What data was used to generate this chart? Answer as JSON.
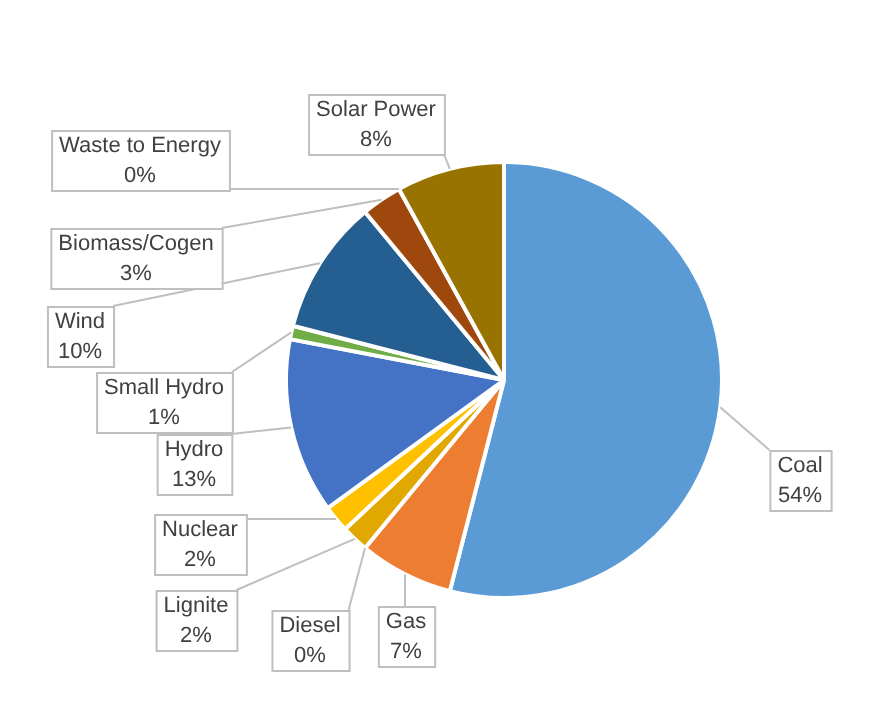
{
  "chart_data": {
    "type": "pie",
    "categories": [
      "Coal",
      "Gas",
      "Diesel",
      "Lignite",
      "Nuclear",
      "Hydro",
      "Small Hydro",
      "Wind",
      "Biomass/Cogen",
      "Waste to Energy",
      "Solar Power"
    ],
    "values": [
      54,
      7,
      0,
      2,
      2,
      13,
      1,
      10,
      3,
      0,
      8
    ],
    "value_labels": [
      "54%",
      "7%",
      "0%",
      "2%",
      "2%",
      "13%",
      "1%",
      "10%",
      "3%",
      "0%",
      "8%"
    ],
    "colors": [
      "#5b9bd5",
      "#ed7d31",
      "#a5a5a5",
      "#e0a800",
      "#ffc000",
      "#4472c4",
      "#70ad47",
      "#255e91",
      "#9e480e",
      "#636363",
      "#997300"
    ],
    "legend": false
  }
}
